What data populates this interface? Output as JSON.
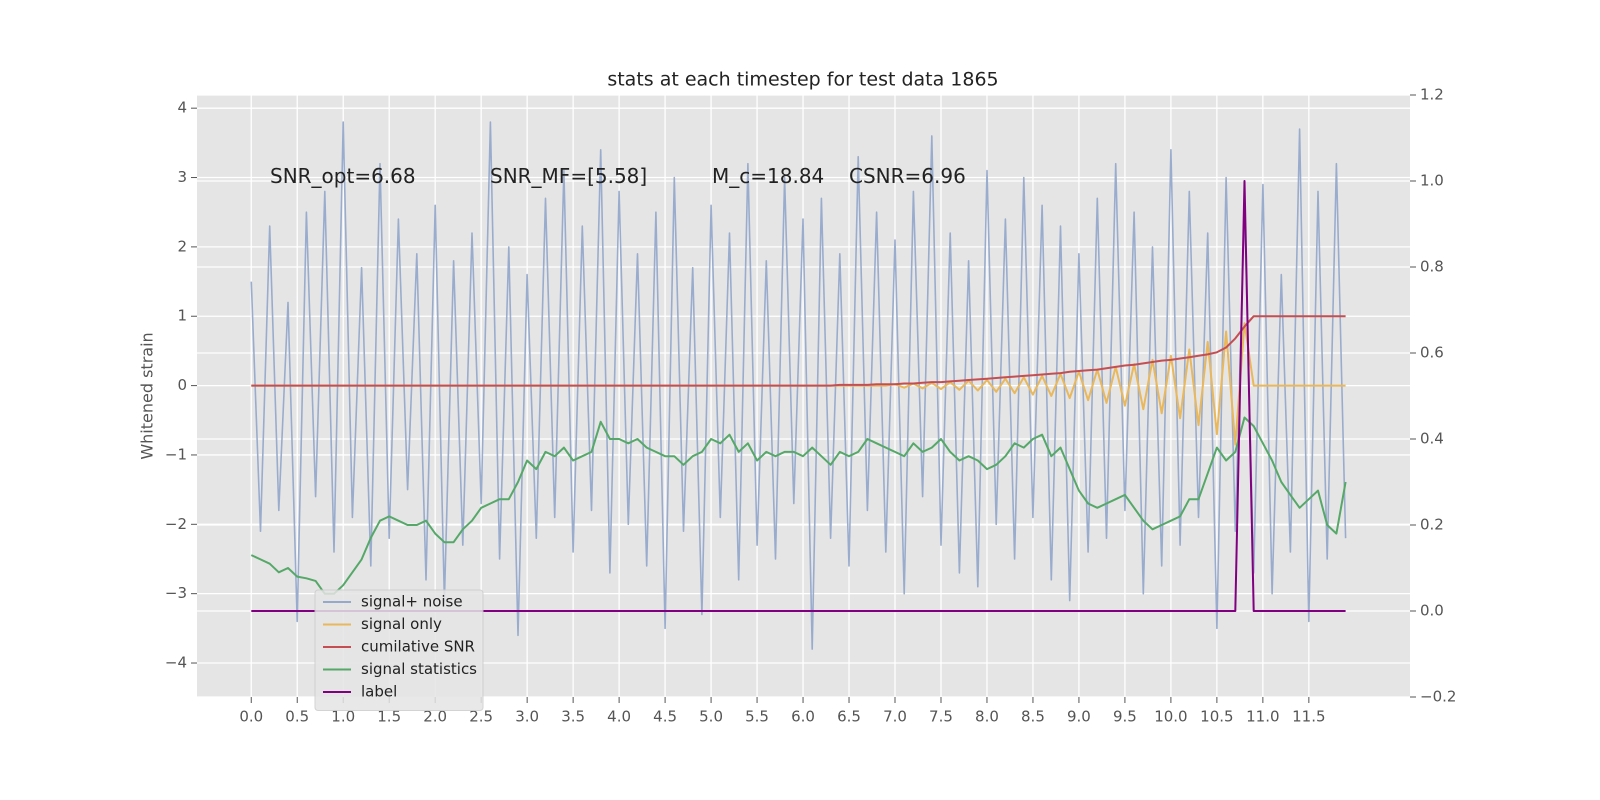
{
  "chart_data": {
    "type": "line",
    "title": "stats at each timestep for test data 1865",
    "ylabel": "Whitened strain",
    "annotations": [
      "SNR_opt=6.68",
      "SNR_MF=[5.58]",
      "M_c=18.84",
      "CSNR=6.96"
    ],
    "x": [
      0.0,
      0.1,
      0.2,
      0.3,
      0.4,
      0.5,
      0.6,
      0.7,
      0.8,
      0.9,
      1.0,
      1.1,
      1.2,
      1.3,
      1.4,
      1.5,
      1.6,
      1.7,
      1.8,
      1.9,
      2.0,
      2.1,
      2.2,
      2.3,
      2.4,
      2.5,
      2.6,
      2.7,
      2.8,
      2.9,
      3.0,
      3.1,
      3.2,
      3.3,
      3.4,
      3.5,
      3.6,
      3.7,
      3.8,
      3.9,
      4.0,
      4.1,
      4.2,
      4.3,
      4.4,
      4.5,
      4.6,
      4.7,
      4.8,
      4.9,
      5.0,
      5.1,
      5.2,
      5.3,
      5.4,
      5.5,
      5.6,
      5.7,
      5.8,
      5.9,
      6.0,
      6.1,
      6.2,
      6.3,
      6.4,
      6.5,
      6.6,
      6.7,
      6.8,
      6.9,
      7.0,
      7.1,
      7.2,
      7.3,
      7.4,
      7.5,
      7.6,
      7.7,
      7.8,
      7.9,
      8.0,
      8.1,
      8.2,
      8.3,
      8.4,
      8.5,
      8.6,
      8.7,
      8.8,
      8.9,
      9.0,
      9.1,
      9.2,
      9.3,
      9.4,
      9.5,
      9.6,
      9.7,
      9.8,
      9.9,
      10.0,
      10.1,
      10.2,
      10.3,
      10.4,
      10.5,
      10.6,
      10.7,
      10.8,
      10.9,
      11.0,
      11.1,
      11.2,
      11.3,
      11.4,
      11.5,
      11.6,
      11.7,
      11.8,
      11.9
    ],
    "series": [
      {
        "name": "signal+ noise",
        "color": "#96a9cb",
        "axis": "y",
        "values": [
          1.5,
          -2.1,
          2.3,
          -1.8,
          1.2,
          -3.4,
          2.5,
          -1.6,
          2.8,
          -2.4,
          3.8,
          -1.9,
          1.7,
          -2.6,
          3.2,
          -2.2,
          2.4,
          -1.5,
          1.9,
          -2.8,
          2.6,
          -3.1,
          1.8,
          -2.3,
          2.2,
          -1.7,
          3.8,
          -2.5,
          2.0,
          -3.6,
          1.6,
          -2.2,
          2.7,
          -1.9,
          3.1,
          -2.4,
          2.3,
          -1.8,
          3.4,
          -2.7,
          2.8,
          -2.0,
          1.9,
          -2.6,
          2.5,
          -3.5,
          3.0,
          -2.1,
          1.7,
          -3.3,
          2.6,
          -1.9,
          2.2,
          -2.8,
          3.2,
          -2.3,
          1.8,
          -2.5,
          3.0,
          -1.7,
          2.4,
          -3.8,
          2.7,
          -2.2,
          1.9,
          -2.6,
          3.3,
          -1.8,
          2.5,
          -2.4,
          2.1,
          -3.0,
          2.8,
          -1.6,
          3.6,
          -2.3,
          2.2,
          -2.7,
          1.8,
          -2.9,
          3.1,
          -2.0,
          2.4,
          -2.5,
          3.0,
          -1.9,
          2.6,
          -2.8,
          2.3,
          -3.1,
          1.9,
          -2.4,
          2.7,
          -2.2,
          3.2,
          -1.8,
          2.5,
          -3.0,
          2.0,
          -2.6,
          3.4,
          -2.3,
          2.8,
          -1.9,
          2.2,
          -3.5,
          3.0,
          -2.1,
          2.6,
          -2.7,
          2.9,
          -3.0,
          1.6,
          -2.4,
          3.7,
          -3.4,
          2.8,
          -2.5,
          3.2,
          -2.2
        ]
      },
      {
        "name": "signal only",
        "color": "#e9b85c",
        "axis": "y",
        "values": [
          0,
          0,
          0,
          0,
          0,
          0,
          0,
          0,
          0,
          0,
          0,
          0,
          0,
          0,
          0,
          0,
          0,
          0,
          0,
          0,
          0,
          0,
          0,
          0,
          0,
          0,
          0,
          0,
          0,
          0,
          0,
          0,
          0,
          0,
          0,
          0,
          0,
          0,
          0,
          0,
          0,
          0,
          0,
          0,
          0,
          0,
          0,
          0,
          0,
          0,
          0,
          0,
          0,
          0,
          0,
          0,
          0,
          0,
          0,
          0,
          0,
          0,
          0,
          0,
          0,
          0,
          0,
          0,
          0,
          0,
          0.02,
          -0.03,
          0.03,
          -0.04,
          0.04,
          -0.05,
          0.05,
          -0.06,
          0.07,
          -0.07,
          0.08,
          -0.09,
          0.1,
          -0.11,
          0.12,
          -0.13,
          0.14,
          -0.15,
          0.17,
          -0.18,
          0.2,
          -0.21,
          0.23,
          -0.25,
          0.27,
          -0.29,
          0.31,
          -0.34,
          0.37,
          -0.4,
          0.43,
          -0.47,
          0.52,
          -0.57,
          0.63,
          -0.7,
          0.78,
          -0.85,
          0.9,
          0,
          0,
          0,
          0,
          0,
          0,
          0,
          0,
          0,
          0,
          0
        ]
      },
      {
        "name": "cumilative SNR",
        "color": "#c44e52",
        "axis": "y",
        "values": [
          0,
          0,
          0,
          0,
          0,
          0,
          0,
          0,
          0,
          0,
          0,
          0,
          0,
          0,
          0,
          0,
          0,
          0,
          0,
          0,
          0,
          0,
          0,
          0,
          0,
          0,
          0,
          0,
          0,
          0,
          0,
          0,
          0,
          0,
          0,
          0,
          0,
          0,
          0,
          0,
          0,
          0,
          0,
          0,
          0,
          0,
          0,
          0,
          0,
          0,
          0,
          0,
          0,
          0,
          0,
          0,
          0,
          0,
          0,
          0,
          0,
          0,
          0,
          0,
          0.01,
          0.01,
          0.01,
          0.01,
          0.02,
          0.02,
          0.02,
          0.03,
          0.03,
          0.04,
          0.05,
          0.05,
          0.06,
          0.07,
          0.08,
          0.09,
          0.1,
          0.11,
          0.12,
          0.13,
          0.14,
          0.15,
          0.16,
          0.17,
          0.18,
          0.2,
          0.21,
          0.22,
          0.23,
          0.25,
          0.27,
          0.29,
          0.3,
          0.32,
          0.34,
          0.36,
          0.37,
          0.39,
          0.41,
          0.43,
          0.45,
          0.48,
          0.55,
          0.68,
          0.85,
          1.0,
          1.0,
          1.0,
          1.0,
          1.0,
          1.0,
          1.0,
          1.0,
          1.0,
          1.0,
          1.0
        ]
      },
      {
        "name": "signal statistics",
        "color": "#55a868",
        "axis": "y2",
        "values": [
          0.13,
          0.12,
          0.11,
          0.09,
          0.1,
          0.08,
          0.076,
          0.07,
          0.04,
          0.04,
          0.06,
          0.09,
          0.12,
          0.17,
          0.21,
          0.22,
          0.21,
          0.2,
          0.2,
          0.21,
          0.18,
          0.16,
          0.16,
          0.19,
          0.21,
          0.24,
          0.25,
          0.26,
          0.26,
          0.3,
          0.35,
          0.33,
          0.37,
          0.36,
          0.38,
          0.35,
          0.36,
          0.37,
          0.44,
          0.4,
          0.4,
          0.39,
          0.4,
          0.38,
          0.37,
          0.36,
          0.36,
          0.34,
          0.36,
          0.37,
          0.4,
          0.39,
          0.41,
          0.37,
          0.39,
          0.35,
          0.37,
          0.36,
          0.37,
          0.37,
          0.36,
          0.38,
          0.36,
          0.34,
          0.37,
          0.36,
          0.37,
          0.4,
          0.39,
          0.38,
          0.37,
          0.36,
          0.39,
          0.37,
          0.38,
          0.4,
          0.37,
          0.35,
          0.36,
          0.35,
          0.33,
          0.34,
          0.36,
          0.39,
          0.38,
          0.4,
          0.41,
          0.36,
          0.38,
          0.33,
          0.28,
          0.25,
          0.24,
          0.25,
          0.26,
          0.27,
          0.24,
          0.21,
          0.19,
          0.2,
          0.21,
          0.22,
          0.26,
          0.26,
          0.32,
          0.38,
          0.35,
          0.37,
          0.45,
          0.43,
          0.39,
          0.35,
          0.3,
          0.27,
          0.24,
          0.26,
          0.28,
          0.2,
          0.18,
          0.3
        ]
      },
      {
        "name": "label",
        "color": "#800080",
        "axis": "y2",
        "values": [
          0,
          0,
          0,
          0,
          0,
          0,
          0,
          0,
          0,
          0,
          0,
          0,
          0,
          0,
          0,
          0,
          0,
          0,
          0,
          0,
          0,
          0,
          0,
          0,
          0,
          0,
          0,
          0,
          0,
          0,
          0,
          0,
          0,
          0,
          0,
          0,
          0,
          0,
          0,
          0,
          0,
          0,
          0,
          0,
          0,
          0,
          0,
          0,
          0,
          0,
          0,
          0,
          0,
          0,
          0,
          0,
          0,
          0,
          0,
          0,
          0,
          0,
          0,
          0,
          0,
          0,
          0,
          0,
          0,
          0,
          0,
          0,
          0,
          0,
          0,
          0,
          0,
          0,
          0,
          0,
          0,
          0,
          0,
          0,
          0,
          0,
          0,
          0,
          0,
          0,
          0,
          0,
          0,
          0,
          0,
          0,
          0,
          0,
          0,
          0,
          0,
          0,
          0,
          0,
          0,
          0,
          0,
          0,
          1.0,
          0,
          0,
          0,
          0,
          0,
          0,
          0,
          0,
          0,
          0,
          0
        ]
      }
    ],
    "xlim": [
      -0.59,
      12.6
    ],
    "xticks": [
      {
        "value": 0,
        "label": "0.0"
      },
      0.5,
      {
        "value": 1,
        "label": "1.0"
      },
      1.5,
      {
        "value": 2,
        "label": "2.0"
      },
      2.5,
      {
        "value": 3,
        "label": "3.0"
      },
      3.5,
      {
        "value": 4,
        "label": "4.0"
      },
      4.5,
      {
        "value": 5,
        "label": "5.0"
      },
      5.5,
      {
        "value": 6,
        "label": "6.0"
      },
      6.5,
      {
        "value": 7,
        "label": "7.0"
      },
      7.5,
      {
        "value": 8,
        "label": "8.0"
      },
      8.5,
      {
        "value": 9,
        "label": "9.0"
      },
      9.5,
      {
        "value": 10,
        "label": "10.0"
      },
      10.5,
      {
        "value": 11,
        "label": "11.0"
      },
      11.5
    ],
    "ylim": [
      -4.49,
      4.19
    ],
    "yticks": [
      {
        "value": -4,
        "label": "−4"
      },
      {
        "value": -3,
        "label": "−3"
      },
      {
        "value": -2,
        "label": "−2"
      },
      {
        "value": -1,
        "label": "−1"
      },
      0,
      1,
      2,
      3,
      4
    ],
    "y2lim": [
      -0.2,
      1.2
    ],
    "y2ticks": [
      {
        "value": -0.2,
        "label": "−0.2"
      },
      {
        "value": 0,
        "label": "0.0"
      },
      0.2,
      0.4,
      0.6,
      0.8,
      {
        "value": 1,
        "label": "1.0"
      },
      1.2
    ],
    "grid": true,
    "legend": "lower left"
  }
}
